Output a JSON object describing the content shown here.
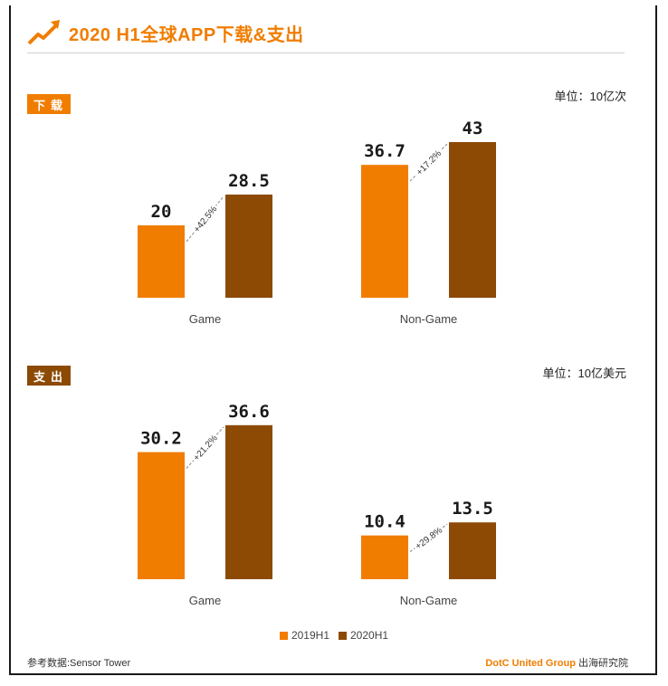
{
  "title": "2020 H1全球APP下载&支出",
  "colors": {
    "c2019": "#f07d00",
    "c2020": "#8c4a05",
    "title": "#f07d00"
  },
  "chart_data": [
    {
      "type": "bar",
      "badge": "下载",
      "unit": "单位：10亿次",
      "categories": [
        "Game",
        "Non-Game"
      ],
      "series": [
        {
          "name": "2019H1",
          "values": [
            20,
            36.7
          ]
        },
        {
          "name": "2020H1",
          "values": [
            28.5,
            43
          ]
        }
      ],
      "value_labels": [
        [
          "20",
          "28.5"
        ],
        [
          "36.7",
          "43"
        ]
      ],
      "growth": [
        "+42.5%",
        "+17.2%"
      ]
    },
    {
      "type": "bar",
      "badge": "支出",
      "unit": "单位：10亿美元",
      "categories": [
        "Game",
        "Non-Game"
      ],
      "series": [
        {
          "name": "2019H1",
          "values": [
            30.2,
            10.4
          ]
        },
        {
          "name": "2020H1",
          "values": [
            36.6,
            13.5
          ]
        }
      ],
      "value_labels": [
        [
          "30.2",
          "36.6"
        ],
        [
          "10.4",
          "13.5"
        ]
      ],
      "growth": [
        "+21.2%",
        "+29.8%"
      ]
    }
  ],
  "legend": [
    "2019H1",
    "2020H1"
  ],
  "source": "参考数据:Sensor Tower",
  "brand": {
    "name": "DotC United Group",
    "suffix": "出海研究院"
  }
}
